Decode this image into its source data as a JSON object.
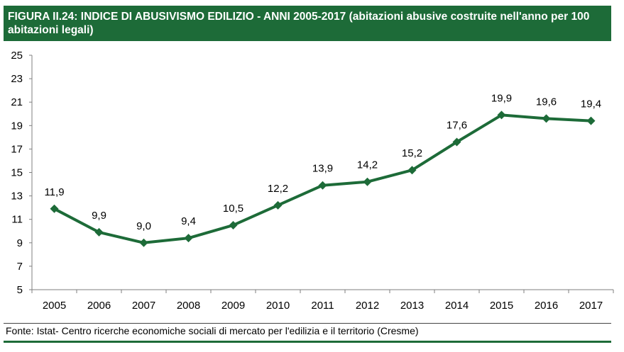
{
  "header": {
    "title": "FIGURA II.24: INDICE DI ABUSIVISMO EDILIZIO - ANNI 2005-2017 (abitazioni abusive costruite nell'anno per 100 abitazioni legali)"
  },
  "footer": {
    "source": "Fonte: Istat- Centro ricerche economiche sociali di mercato per l'edilizia e il territorio (Cresme)"
  },
  "chart_data": {
    "type": "line",
    "x": [
      "2005",
      "2006",
      "2007",
      "2008",
      "2009",
      "2010",
      "2011",
      "2012",
      "2013",
      "2014",
      "2015",
      "2016",
      "2017"
    ],
    "series": [
      {
        "values": [
          11.9,
          9.9,
          9.0,
          9.4,
          10.5,
          12.2,
          13.9,
          14.2,
          15.2,
          17.6,
          19.9,
          19.6,
          19.4
        ],
        "labels": [
          "11,9",
          "9,9",
          "9,0",
          "9,4",
          "10,5",
          "12,2",
          "13,9",
          "14,2",
          "15,2",
          "17,6",
          "19,9",
          "19,6",
          "19,4"
        ]
      }
    ],
    "ylim": [
      5,
      25
    ],
    "yticks": [
      "5",
      "7",
      "9",
      "11",
      "13",
      "15",
      "17",
      "19",
      "21",
      "23",
      "25"
    ],
    "grid": false,
    "legend": "none",
    "line_color": "#1d6b38"
  }
}
